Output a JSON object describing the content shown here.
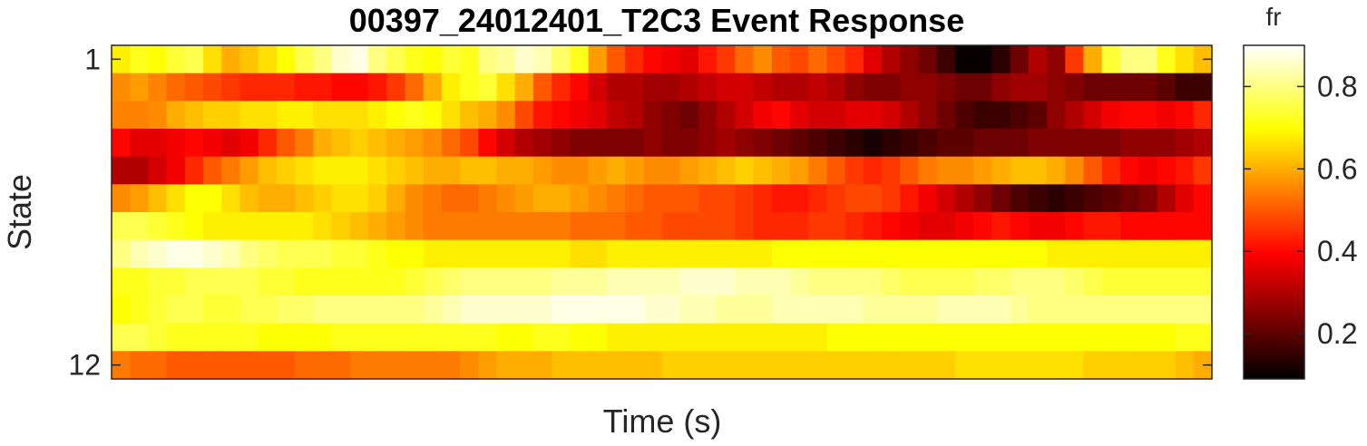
{
  "chart_data": {
    "type": "heatmap",
    "title": "00397_24012401_T2C3 Event Response",
    "xlabel": "Time (s)",
    "ylabel": "State",
    "y_tick_labels": [
      "1",
      "12"
    ],
    "y_tick_states": [
      1,
      12
    ],
    "colorbar": {
      "label": "fr",
      "colormap": "hot",
      "clim": [
        0.09,
        0.9
      ],
      "ticks": [
        0.2,
        0.4,
        0.6,
        0.8
      ],
      "tick_labels": [
        "0.2",
        "0.4",
        "0.6",
        "0.8"
      ]
    },
    "n_time_bins": 60,
    "rows": [
      {
        "state": 1,
        "values": [
          0.68,
          0.72,
          0.7,
          0.74,
          0.76,
          0.66,
          0.6,
          0.63,
          0.66,
          0.7,
          0.76,
          0.8,
          0.86,
          0.88,
          0.8,
          0.76,
          0.72,
          0.7,
          0.74,
          0.72,
          0.8,
          0.82,
          0.86,
          0.84,
          0.78,
          0.72,
          0.58,
          0.5,
          0.44,
          0.4,
          0.38,
          0.36,
          0.42,
          0.46,
          0.52,
          0.56,
          0.5,
          0.48,
          0.52,
          0.48,
          0.44,
          0.36,
          0.3,
          0.26,
          0.22,
          0.16,
          0.1,
          0.1,
          0.14,
          0.22,
          0.3,
          0.26,
          0.46,
          0.6,
          0.74,
          0.8,
          0.8,
          0.72,
          0.66,
          0.62
        ]
      },
      {
        "state": 2,
        "values": [
          0.56,
          0.58,
          0.55,
          0.52,
          0.5,
          0.48,
          0.46,
          0.44,
          0.44,
          0.44,
          0.42,
          0.42,
          0.4,
          0.4,
          0.42,
          0.46,
          0.52,
          0.6,
          0.68,
          0.72,
          0.74,
          0.66,
          0.6,
          0.5,
          0.44,
          0.4,
          0.34,
          0.3,
          0.3,
          0.28,
          0.28,
          0.3,
          0.32,
          0.34,
          0.34,
          0.32,
          0.3,
          0.3,
          0.32,
          0.3,
          0.26,
          0.24,
          0.24,
          0.26,
          0.26,
          0.24,
          0.22,
          0.22,
          0.26,
          0.28,
          0.28,
          0.26,
          0.24,
          0.22,
          0.22,
          0.22,
          0.22,
          0.2,
          0.16,
          0.16
        ]
      },
      {
        "state": 3,
        "values": [
          0.55,
          0.55,
          0.56,
          0.6,
          0.62,
          0.64,
          0.64,
          0.66,
          0.66,
          0.68,
          0.68,
          0.66,
          0.66,
          0.66,
          0.68,
          0.7,
          0.72,
          0.7,
          0.66,
          0.62,
          0.6,
          0.56,
          0.48,
          0.42,
          0.4,
          0.38,
          0.36,
          0.32,
          0.3,
          0.26,
          0.24,
          0.22,
          0.26,
          0.3,
          0.34,
          0.38,
          0.4,
          0.36,
          0.34,
          0.34,
          0.36,
          0.36,
          0.34,
          0.3,
          0.26,
          0.22,
          0.18,
          0.16,
          0.16,
          0.18,
          0.2,
          0.26,
          0.3,
          0.34,
          0.38,
          0.4,
          0.4,
          0.38,
          0.4,
          0.44
        ]
      },
      {
        "state": 4,
        "values": [
          0.4,
          0.36,
          0.36,
          0.38,
          0.4,
          0.38,
          0.36,
          0.38,
          0.44,
          0.5,
          0.54,
          0.6,
          0.62,
          0.64,
          0.62,
          0.6,
          0.58,
          0.56,
          0.52,
          0.48,
          0.4,
          0.34,
          0.3,
          0.28,
          0.26,
          0.24,
          0.24,
          0.24,
          0.24,
          0.26,
          0.24,
          0.24,
          0.26,
          0.28,
          0.26,
          0.24,
          0.22,
          0.2,
          0.18,
          0.16,
          0.14,
          0.12,
          0.14,
          0.16,
          0.18,
          0.2,
          0.2,
          0.22,
          0.22,
          0.22,
          0.24,
          0.24,
          0.24,
          0.24,
          0.24,
          0.26,
          0.26,
          0.26,
          0.28,
          0.3
        ]
      },
      {
        "state": 5,
        "values": [
          0.3,
          0.3,
          0.34,
          0.38,
          0.44,
          0.5,
          0.54,
          0.58,
          0.62,
          0.64,
          0.66,
          0.68,
          0.68,
          0.68,
          0.66,
          0.64,
          0.62,
          0.6,
          0.6,
          0.62,
          0.62,
          0.6,
          0.6,
          0.58,
          0.56,
          0.56,
          0.58,
          0.6,
          0.58,
          0.56,
          0.56,
          0.58,
          0.6,
          0.62,
          0.64,
          0.62,
          0.6,
          0.58,
          0.54,
          0.5,
          0.46,
          0.44,
          0.46,
          0.5,
          0.54,
          0.56,
          0.56,
          0.58,
          0.6,
          0.62,
          0.62,
          0.6,
          0.56,
          0.5,
          0.44,
          0.4,
          0.38,
          0.4,
          0.42,
          0.46
        ]
      },
      {
        "state": 6,
        "values": [
          0.56,
          0.58,
          0.62,
          0.66,
          0.7,
          0.7,
          0.66,
          0.62,
          0.6,
          0.6,
          0.62,
          0.64,
          0.66,
          0.66,
          0.64,
          0.6,
          0.56,
          0.54,
          0.52,
          0.52,
          0.54,
          0.56,
          0.58,
          0.6,
          0.6,
          0.58,
          0.56,
          0.54,
          0.52,
          0.5,
          0.5,
          0.5,
          0.48,
          0.48,
          0.46,
          0.44,
          0.42,
          0.42,
          0.44,
          0.46,
          0.48,
          0.48,
          0.46,
          0.42,
          0.38,
          0.34,
          0.3,
          0.26,
          0.22,
          0.18,
          0.16,
          0.14,
          0.16,
          0.18,
          0.2,
          0.22,
          0.24,
          0.3,
          0.36,
          0.4
        ]
      },
      {
        "state": 7,
        "values": [
          0.76,
          0.76,
          0.74,
          0.72,
          0.7,
          0.68,
          0.68,
          0.68,
          0.68,
          0.68,
          0.68,
          0.66,
          0.64,
          0.62,
          0.6,
          0.58,
          0.56,
          0.54,
          0.54,
          0.54,
          0.54,
          0.54,
          0.54,
          0.54,
          0.54,
          0.52,
          0.52,
          0.52,
          0.5,
          0.5,
          0.48,
          0.48,
          0.48,
          0.48,
          0.46,
          0.44,
          0.44,
          0.44,
          0.46,
          0.46,
          0.44,
          0.42,
          0.4,
          0.38,
          0.36,
          0.36,
          0.38,
          0.4,
          0.42,
          0.4,
          0.38,
          0.38,
          0.4,
          0.42,
          0.42,
          0.4,
          0.4,
          0.4,
          0.4,
          0.4
        ]
      },
      {
        "state": 8,
        "values": [
          0.8,
          0.84,
          0.86,
          0.88,
          0.88,
          0.86,
          0.84,
          0.8,
          0.78,
          0.76,
          0.76,
          0.76,
          0.74,
          0.74,
          0.72,
          0.7,
          0.7,
          0.68,
          0.68,
          0.68,
          0.68,
          0.68,
          0.68,
          0.68,
          0.68,
          0.66,
          0.66,
          0.68,
          0.68,
          0.68,
          0.68,
          0.68,
          0.68,
          0.68,
          0.68,
          0.68,
          0.7,
          0.7,
          0.7,
          0.7,
          0.7,
          0.7,
          0.7,
          0.7,
          0.7,
          0.7,
          0.7,
          0.7,
          0.7,
          0.7,
          0.7,
          0.68,
          0.68,
          0.68,
          0.68,
          0.68,
          0.68,
          0.68,
          0.68,
          0.68
        ]
      },
      {
        "state": 9,
        "values": [
          0.72,
          0.72,
          0.74,
          0.74,
          0.76,
          0.76,
          0.76,
          0.76,
          0.74,
          0.74,
          0.72,
          0.72,
          0.72,
          0.72,
          0.72,
          0.72,
          0.74,
          0.76,
          0.78,
          0.8,
          0.8,
          0.8,
          0.8,
          0.8,
          0.82,
          0.82,
          0.82,
          0.84,
          0.84,
          0.84,
          0.84,
          0.86,
          0.86,
          0.86,
          0.84,
          0.84,
          0.84,
          0.82,
          0.8,
          0.8,
          0.8,
          0.8,
          0.78,
          0.76,
          0.76,
          0.76,
          0.76,
          0.78,
          0.78,
          0.8,
          0.8,
          0.8,
          0.78,
          0.76,
          0.74,
          0.74,
          0.74,
          0.74,
          0.74,
          0.74
        ]
      },
      {
        "state": 10,
        "values": [
          0.7,
          0.72,
          0.74,
          0.76,
          0.76,
          0.74,
          0.74,
          0.76,
          0.76,
          0.78,
          0.78,
          0.8,
          0.8,
          0.8,
          0.8,
          0.8,
          0.8,
          0.82,
          0.84,
          0.86,
          0.86,
          0.86,
          0.86,
          0.86,
          0.88,
          0.88,
          0.88,
          0.88,
          0.88,
          0.86,
          0.86,
          0.84,
          0.84,
          0.82,
          0.82,
          0.82,
          0.84,
          0.84,
          0.84,
          0.84,
          0.84,
          0.82,
          0.82,
          0.82,
          0.82,
          0.84,
          0.84,
          0.84,
          0.84,
          0.82,
          0.8,
          0.8,
          0.8,
          0.8,
          0.8,
          0.8,
          0.8,
          0.8,
          0.8,
          0.8
        ]
      },
      {
        "state": 11,
        "values": [
          0.76,
          0.76,
          0.74,
          0.72,
          0.72,
          0.72,
          0.72,
          0.72,
          0.7,
          0.7,
          0.7,
          0.7,
          0.72,
          0.72,
          0.72,
          0.72,
          0.72,
          0.72,
          0.72,
          0.72,
          0.72,
          0.7,
          0.7,
          0.72,
          0.72,
          0.7,
          0.7,
          0.68,
          0.68,
          0.68,
          0.68,
          0.68,
          0.68,
          0.68,
          0.68,
          0.68,
          0.68,
          0.68,
          0.68,
          0.7,
          0.7,
          0.7,
          0.7,
          0.7,
          0.7,
          0.7,
          0.7,
          0.7,
          0.7,
          0.7,
          0.7,
          0.7,
          0.7,
          0.7,
          0.7,
          0.7,
          0.7,
          0.7,
          0.72,
          0.72
        ]
      },
      {
        "state": 12,
        "values": [
          0.54,
          0.52,
          0.52,
          0.5,
          0.5,
          0.5,
          0.5,
          0.5,
          0.5,
          0.5,
          0.52,
          0.52,
          0.52,
          0.54,
          0.54,
          0.54,
          0.54,
          0.54,
          0.54,
          0.56,
          0.58,
          0.6,
          0.6,
          0.6,
          0.62,
          0.62,
          0.62,
          0.62,
          0.62,
          0.62,
          0.64,
          0.64,
          0.64,
          0.64,
          0.64,
          0.64,
          0.64,
          0.64,
          0.64,
          0.64,
          0.64,
          0.64,
          0.64,
          0.64,
          0.64,
          0.64,
          0.66,
          0.66,
          0.66,
          0.66,
          0.66,
          0.66,
          0.66,
          0.64,
          0.64,
          0.64,
          0.64,
          0.64,
          0.62,
          0.6
        ]
      }
    ]
  }
}
